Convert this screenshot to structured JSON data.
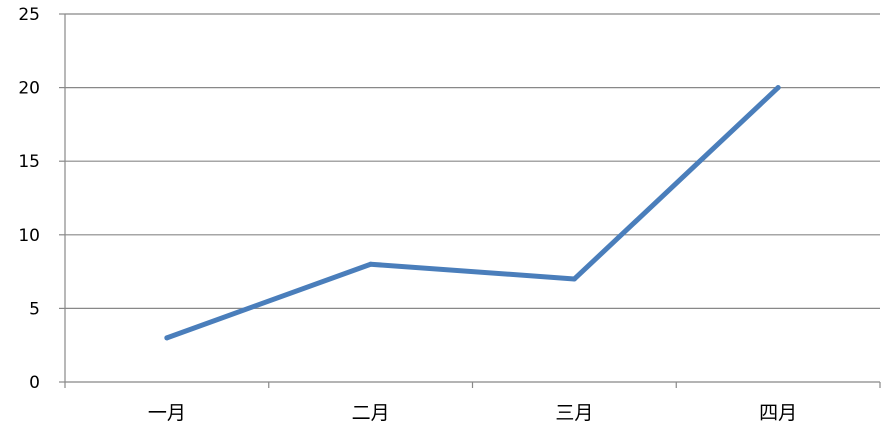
{
  "chart_data": {
    "type": "line",
    "title": "",
    "xlabel": "",
    "ylabel": "",
    "categories": [
      "一月",
      "二月",
      "三月",
      "四月"
    ],
    "series": [
      {
        "values": [
          3,
          8,
          7,
          20
        ],
        "color": "#4a7ebb"
      }
    ],
    "ylim": [
      0,
      25
    ],
    "yticks": [
      0,
      5,
      10,
      15,
      20,
      25
    ],
    "grid": true,
    "legend": "none",
    "gridline_color": "#888888",
    "axis_color": "#888888"
  }
}
